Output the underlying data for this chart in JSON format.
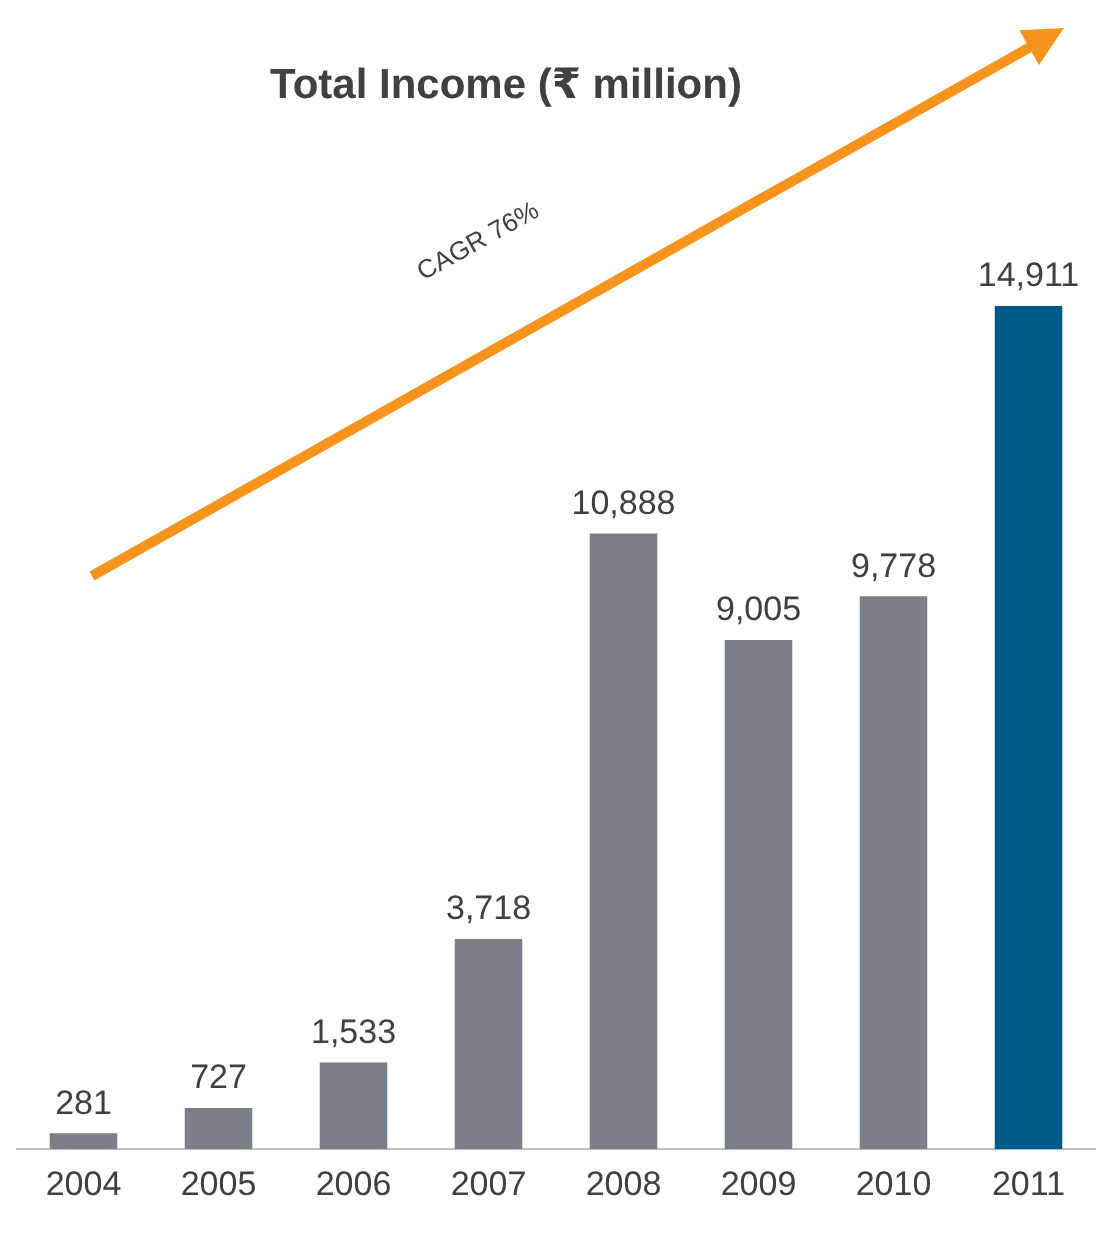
{
  "chart_data": {
    "type": "bar",
    "title": "Total Income (₹ million)",
    "categories": [
      "2004",
      "2005",
      "2006",
      "2007",
      "2008",
      "2009",
      "2010",
      "2011"
    ],
    "values": [
      281,
      727,
      1533,
      3718,
      10888,
      9005,
      9778,
      14911
    ],
    "colors": [
      "#7a7e87",
      "#7a7e87",
      "#7a7e87",
      "#7a7e87",
      "#7a7e87",
      "#7a7e87",
      "#7a7e87",
      "#005a87"
    ],
    "value_labels": [
      "281",
      "727",
      "1,533",
      "3,718",
      "10,888",
      "9,005",
      "9,778",
      "14,911"
    ],
    "grid": false,
    "legend": false,
    "annotations": [
      "CAGR 76%"
    ]
  }
}
